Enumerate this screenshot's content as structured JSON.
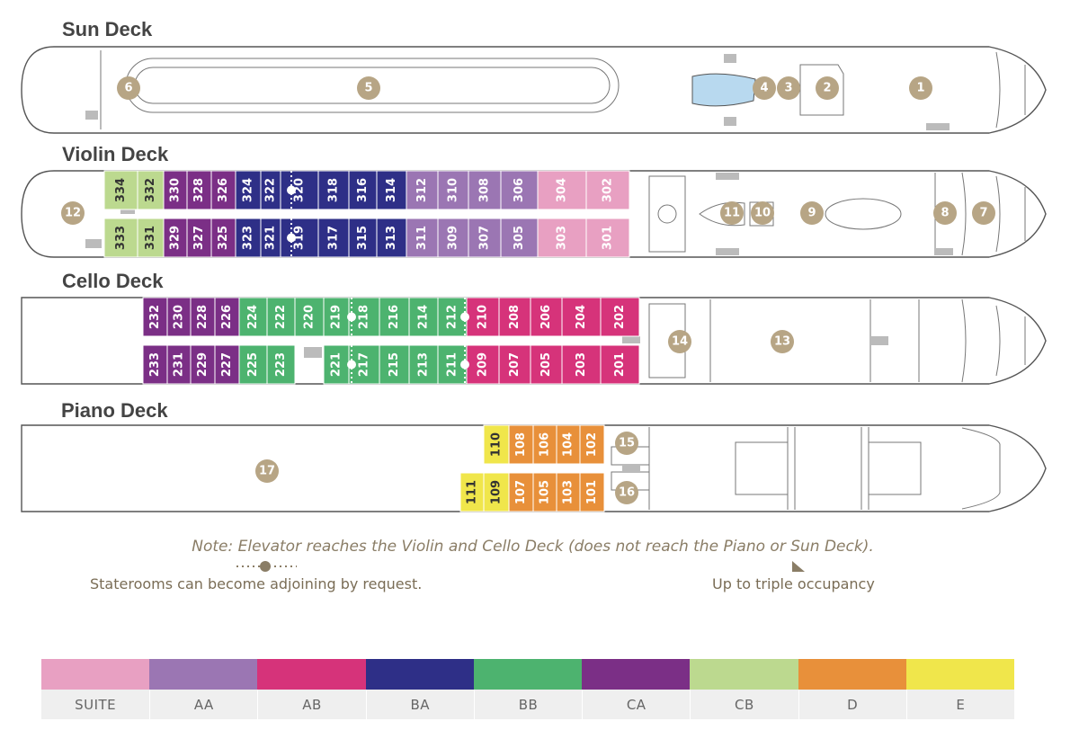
{
  "decks": [
    {
      "key": "sun",
      "title": "Sun Deck"
    },
    {
      "key": "violin",
      "title": "Violin Deck"
    },
    {
      "key": "cello",
      "title": "Cello Deck"
    },
    {
      "key": "piano",
      "title": "Piano Deck"
    }
  ],
  "categories": {
    "SUITE": "#e8a0c2",
    "AA": "#9b76b3",
    "AB": "#d6337a",
    "BA": "#2e2f87",
    "BB": "#4db36f",
    "CA": "#7b2f86",
    "CB": "#bcd98f",
    "D": "#e8903a",
    "E": "#f0e64b"
  },
  "staterooms": {
    "violin": [
      {
        "number": "334",
        "category": "CB"
      },
      {
        "number": "332",
        "category": "CB"
      },
      {
        "number": "330",
        "category": "CA"
      },
      {
        "number": "328",
        "category": "CA"
      },
      {
        "number": "326",
        "category": "CA"
      },
      {
        "number": "324",
        "category": "BA"
      },
      {
        "number": "322",
        "category": "BA"
      },
      {
        "number": "320",
        "category": "BA"
      },
      {
        "number": "318",
        "category": "BA"
      },
      {
        "number": "316",
        "category": "BA"
      },
      {
        "number": "314",
        "category": "BA"
      },
      {
        "number": "312",
        "category": "AA"
      },
      {
        "number": "310",
        "category": "AA"
      },
      {
        "number": "308",
        "category": "AA"
      },
      {
        "number": "306",
        "category": "AA"
      },
      {
        "number": "304",
        "category": "SUITE"
      },
      {
        "number": "302",
        "category": "SUITE"
      },
      {
        "number": "333",
        "category": "CB"
      },
      {
        "number": "331",
        "category": "CB"
      },
      {
        "number": "329",
        "category": "CA"
      },
      {
        "number": "327",
        "category": "CA"
      },
      {
        "number": "325",
        "category": "CA"
      },
      {
        "number": "323",
        "category": "BA"
      },
      {
        "number": "321",
        "category": "BA"
      },
      {
        "number": "319",
        "category": "BA"
      },
      {
        "number": "317",
        "category": "BA"
      },
      {
        "number": "315",
        "category": "BA"
      },
      {
        "number": "313",
        "category": "BA"
      },
      {
        "number": "311",
        "category": "AA"
      },
      {
        "number": "309",
        "category": "AA"
      },
      {
        "number": "307",
        "category": "AA"
      },
      {
        "number": "305",
        "category": "AA"
      },
      {
        "number": "303",
        "category": "SUITE"
      },
      {
        "number": "301",
        "category": "SUITE"
      }
    ],
    "cello": [
      {
        "number": "232",
        "category": "CA"
      },
      {
        "number": "230",
        "category": "CA"
      },
      {
        "number": "228",
        "category": "CA"
      },
      {
        "number": "226",
        "category": "CA"
      },
      {
        "number": "224",
        "category": "BB"
      },
      {
        "number": "222",
        "category": "BB"
      },
      {
        "number": "220",
        "category": "BB"
      },
      {
        "number": "219",
        "category": "BB"
      },
      {
        "number": "218",
        "category": "BB"
      },
      {
        "number": "216",
        "category": "BB"
      },
      {
        "number": "214",
        "category": "BB"
      },
      {
        "number": "212",
        "category": "BB"
      },
      {
        "number": "210",
        "category": "AB"
      },
      {
        "number": "208",
        "category": "AB"
      },
      {
        "number": "206",
        "category": "AB"
      },
      {
        "number": "204",
        "category": "AB"
      },
      {
        "number": "202",
        "category": "AB"
      },
      {
        "number": "233",
        "category": "CA"
      },
      {
        "number": "231",
        "category": "CA"
      },
      {
        "number": "229",
        "category": "CA"
      },
      {
        "number": "227",
        "category": "CA"
      },
      {
        "number": "225",
        "category": "BB"
      },
      {
        "number": "223",
        "category": "BB"
      },
      {
        "number": "221",
        "category": "BB"
      },
      {
        "number": "217",
        "category": "BB"
      },
      {
        "number": "215",
        "category": "BB"
      },
      {
        "number": "213",
        "category": "BB"
      },
      {
        "number": "211",
        "category": "BB"
      },
      {
        "number": "209",
        "category": "AB"
      },
      {
        "number": "207",
        "category": "AB"
      },
      {
        "number": "205",
        "category": "AB"
      },
      {
        "number": "203",
        "category": "AB"
      },
      {
        "number": "201",
        "category": "AB"
      }
    ],
    "piano": [
      {
        "number": "110",
        "category": "E"
      },
      {
        "number": "108",
        "category": "D"
      },
      {
        "number": "106",
        "category": "D"
      },
      {
        "number": "104",
        "category": "D"
      },
      {
        "number": "102",
        "category": "D"
      },
      {
        "number": "111",
        "category": "E"
      },
      {
        "number": "109",
        "category": "E"
      },
      {
        "number": "107",
        "category": "D"
      },
      {
        "number": "105",
        "category": "D"
      },
      {
        "number": "103",
        "category": "D"
      },
      {
        "number": "101",
        "category": "D"
      }
    ]
  },
  "points_of_interest": [
    "1",
    "2",
    "3",
    "4",
    "5",
    "6",
    "7",
    "8",
    "9",
    "10",
    "11",
    "12",
    "13",
    "14",
    "15",
    "16",
    "17"
  ],
  "note": "Note: Elevator reaches the Violin and Cello Deck (does not reach the Piano or Sun Deck).",
  "legend_adjoining": "Staterooms can become adjoining by request.",
  "legend_triple": "Up to triple occupancy",
  "legend": [
    {
      "label": "SUITE",
      "color": "#e8a0c2"
    },
    {
      "label": "AA",
      "color": "#9b76b3"
    },
    {
      "label": "AB",
      "color": "#d6337a"
    },
    {
      "label": "BA",
      "color": "#2e2f87"
    },
    {
      "label": "BB",
      "color": "#4db36f"
    },
    {
      "label": "CA",
      "color": "#7b2f86"
    },
    {
      "label": "CB",
      "color": "#bcd98f"
    },
    {
      "label": "D",
      "color": "#e8903a"
    },
    {
      "label": "E",
      "color": "#f0e64b"
    }
  ]
}
